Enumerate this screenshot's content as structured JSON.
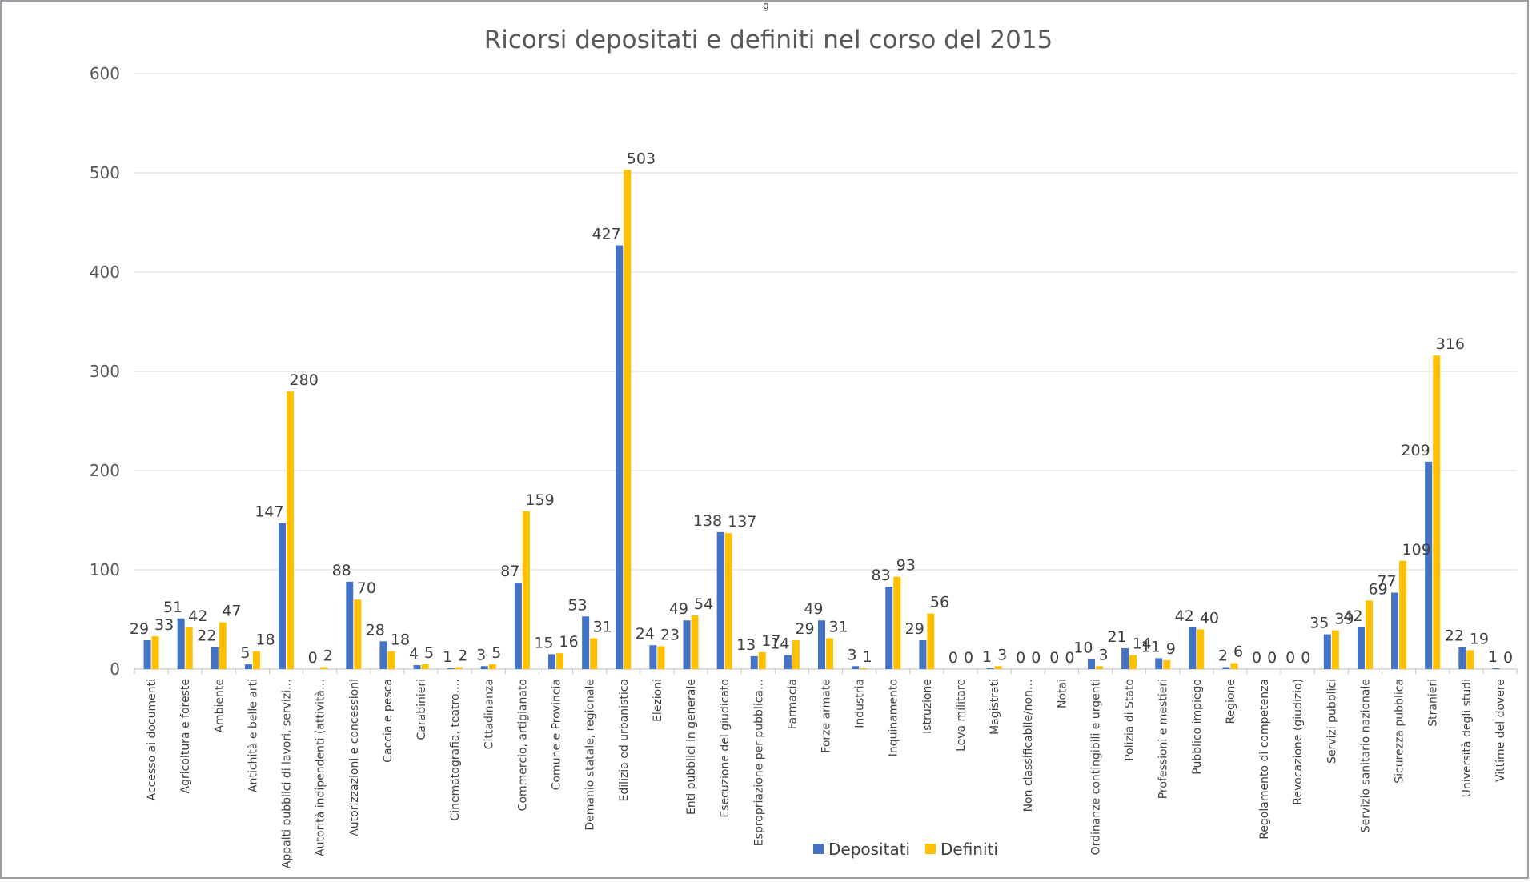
{
  "header": {
    "doc_label": "g"
  },
  "chart_data": {
    "type": "bar",
    "title": "Ricorsi depositati e definiti nel corso del 2015",
    "xlabel": "",
    "ylabel": "",
    "ylim": [
      0,
      600
    ],
    "yticks": [
      0,
      100,
      200,
      300,
      400,
      500,
      600
    ],
    "grid": true,
    "legend_position": "bottom",
    "categories": [
      "Accesso ai documenti",
      "Agricoltura e foreste",
      "Ambiente",
      "Antichità e belle arti",
      "Appalti pubblici di lavori, servizi…",
      "Autorità indipendenti (attività…",
      "Autorizzazioni e concessioni",
      "Caccia e pesca",
      "Carabinieri",
      "Cinematografia, teatro,…",
      "Cittadinanza",
      "Commercio, artigianato",
      "Comune e Provincia",
      "Demanio statale, regionale",
      "Edilizia ed urbanistica",
      "Elezioni",
      "Enti pubblici in generale",
      "Esecuzione del giudicato",
      "Espropriazione per pubblica…",
      "Farmacia",
      "Forze armate",
      "Industria",
      "Inquinamento",
      "Istruzione",
      "Leva militare",
      "Magistrati",
      "Non classificabile/non…",
      "Notai",
      "Ordinanze contingibili e urgenti",
      "Polizia di Stato",
      "Professioni e mestieri",
      "Pubblico impiego",
      "Regione",
      "Regolamento di competenza",
      "Revocazione (giudizio)",
      "Servizi pubblici",
      "Servizio sanitario nazionale",
      "Sicurezza pubblica",
      "Stranieri",
      "Università degli studi",
      "Vittime del dovere"
    ],
    "series": [
      {
        "name": "Depositati",
        "color": "#4472C4",
        "values": [
          29,
          51,
          22,
          5,
          147,
          0,
          88,
          28,
          4,
          1,
          3,
          87,
          15,
          53,
          427,
          24,
          49,
          138,
          13,
          14,
          49,
          3,
          83,
          29,
          0,
          1,
          0,
          0,
          10,
          21,
          11,
          42,
          2,
          0,
          0,
          35,
          42,
          77,
          209,
          22,
          1
        ]
      },
      {
        "name": "Definiti",
        "color": "#FFC000",
        "values": [
          33,
          42,
          47,
          18,
          280,
          2,
          70,
          18,
          5,
          2,
          5,
          159,
          16,
          31,
          503,
          23,
          54,
          137,
          17,
          29,
          31,
          1,
          93,
          56,
          0,
          3,
          0,
          0,
          3,
          14,
          9,
          40,
          6,
          0,
          0,
          39,
          69,
          109,
          316,
          19,
          0
        ]
      }
    ]
  }
}
